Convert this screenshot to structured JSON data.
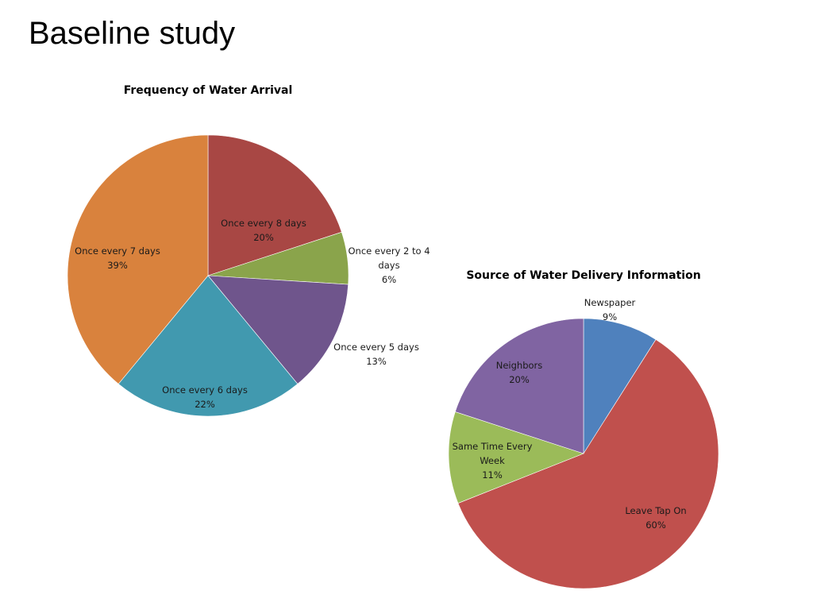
{
  "page": {
    "title": "Baseline study"
  },
  "chart_data": [
    {
      "type": "pie",
      "title": "Frequency of Water Arrival",
      "slices": [
        {
          "label": [
            "Once every 8 days"
          ],
          "pct_text": "20%",
          "value": 20,
          "color": "#A84744"
        },
        {
          "label": [
            "Once every 2 to 4",
            "days"
          ],
          "pct_text": "6%",
          "value": 6,
          "color": "#8AA44B"
        },
        {
          "label": [
            "Once every 5 days"
          ],
          "pct_text": "13%",
          "value": 13,
          "color": "#6F558C"
        },
        {
          "label": [
            "Once every 6 days"
          ],
          "pct_text": "22%",
          "value": 22,
          "color": "#4199AF"
        },
        {
          "label": [
            "Once every 7 days"
          ],
          "pct_text": "39%",
          "value": 39,
          "color": "#D9823D"
        }
      ]
    },
    {
      "type": "pie",
      "title": "Source of Water Delivery Information",
      "slices": [
        {
          "label": [
            "Newspaper"
          ],
          "pct_text": "9%",
          "value": 9,
          "color": "#4F81BD"
        },
        {
          "label": [
            "Leave Tap On"
          ],
          "pct_text": "60%",
          "value": 60,
          "color": "#C0504D"
        },
        {
          "label": [
            "Same Time Every",
            "Week"
          ],
          "pct_text": "11%",
          "value": 11,
          "color": "#9BBB59"
        },
        {
          "label": [
            "Neighbors"
          ],
          "pct_text": "20%",
          "value": 20,
          "color": "#8064A2"
        }
      ]
    }
  ]
}
